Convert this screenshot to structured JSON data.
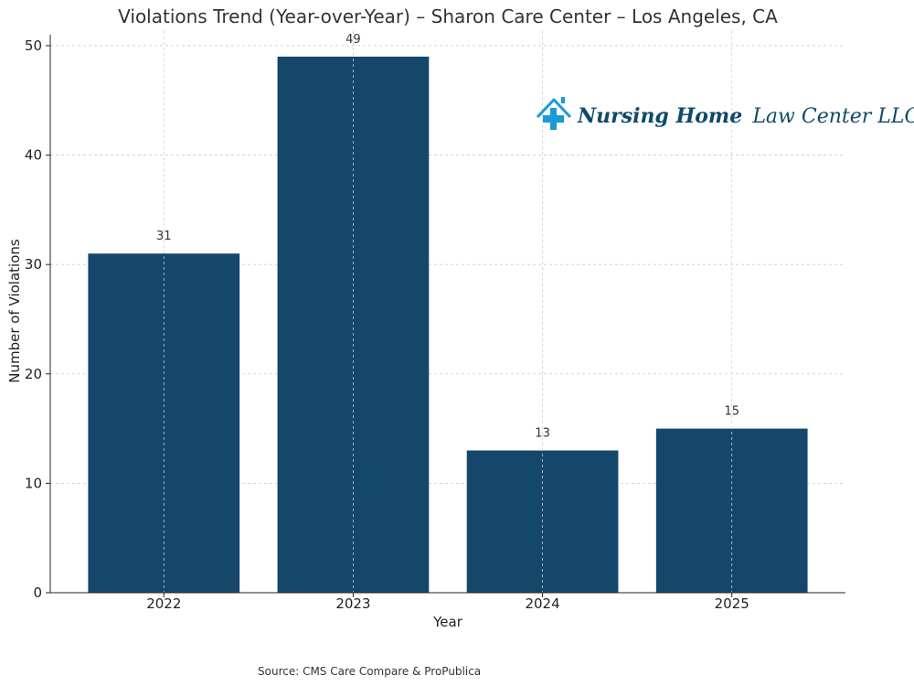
{
  "chart_data": {
    "type": "bar",
    "title": "Violations Trend (Year-over-Year) – Sharon Care Center – Los Angeles, CA",
    "xlabel": "Year",
    "ylabel": "Number of Violations",
    "categories": [
      "2022",
      "2023",
      "2024",
      "2025"
    ],
    "values": [
      31,
      49,
      13,
      15
    ],
    "ylim": [
      0,
      51
    ],
    "yticks": [
      0,
      10,
      20,
      30,
      40,
      50
    ],
    "grid": true,
    "bar_color": "#15476a",
    "source": "Source: CMS Care Compare & ProPublica"
  },
  "logo": {
    "bold_text": "Nursing Home",
    "regular_text": "Law Center LLC",
    "icon": "house-plus-icon",
    "icon_color": "#1a9ad6",
    "text_color": "#0f4a6b"
  }
}
